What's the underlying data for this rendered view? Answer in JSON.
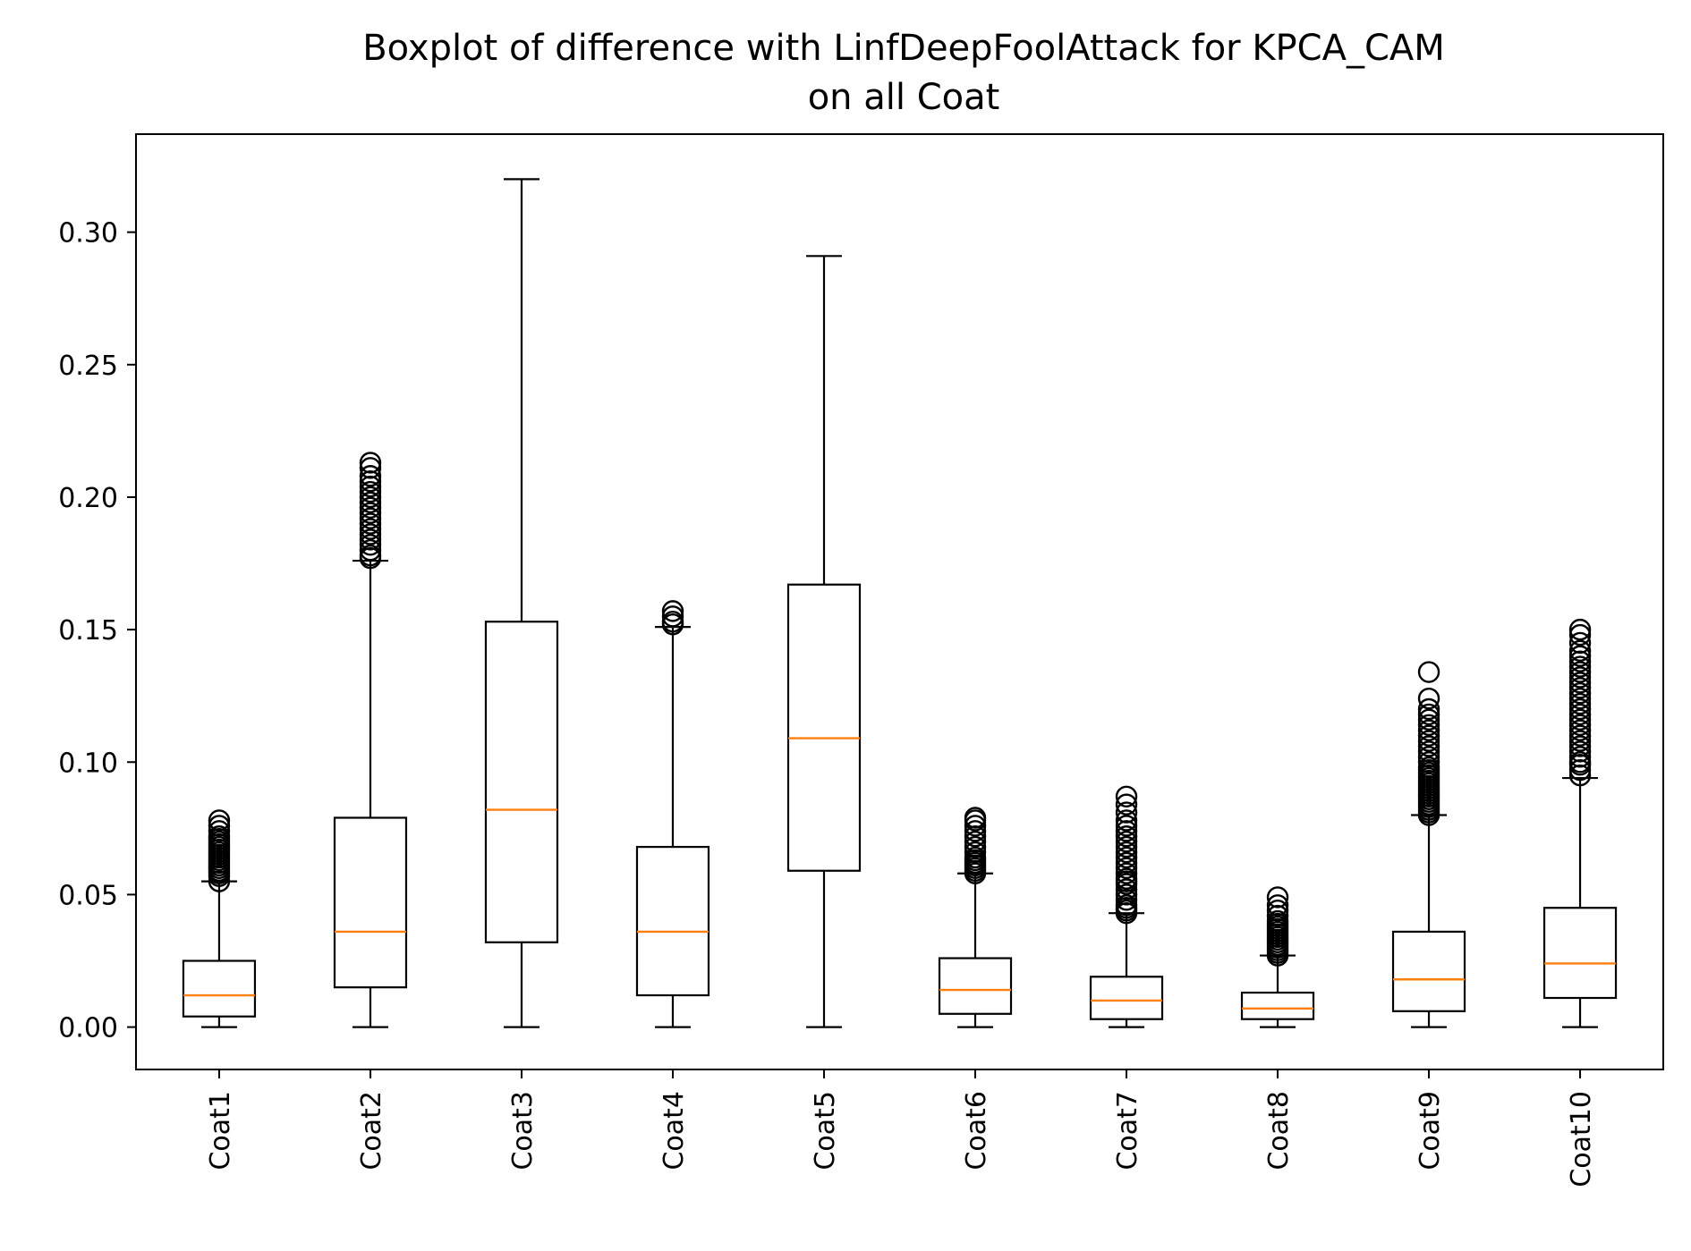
{
  "chart_data": {
    "type": "boxplot",
    "title_line1": "Boxplot of difference with LinfDeepFoolAttack for KPCA_CAM",
    "title_line2": "on all Coat",
    "xlabel": "",
    "ylabel": "",
    "ylim": [
      -0.016,
      0.337
    ],
    "yticks": [
      "0.00",
      "0.05",
      "0.10",
      "0.15",
      "0.20",
      "0.25",
      "0.30"
    ],
    "median_color": "#ff7f0e",
    "box_color": "#000000",
    "grid": false,
    "categories": [
      "Coat1",
      "Coat2",
      "Coat3",
      "Coat4",
      "Coat5",
      "Coat6",
      "Coat7",
      "Coat8",
      "Coat9",
      "Coat10"
    ],
    "boxes": [
      {
        "name": "Coat1",
        "whisker_low": 0.0,
        "q1": 0.004,
        "median": 0.012,
        "q3": 0.025,
        "whisker_high": 0.055,
        "fliers": [
          0.055,
          0.057,
          0.058,
          0.059,
          0.06,
          0.061,
          0.062,
          0.063,
          0.064,
          0.065,
          0.066,
          0.067,
          0.068,
          0.069,
          0.07,
          0.071,
          0.072,
          0.074,
          0.076,
          0.078
        ]
      },
      {
        "name": "Coat2",
        "whisker_low": 0.0,
        "q1": 0.015,
        "median": 0.036,
        "q3": 0.079,
        "whisker_high": 0.176,
        "fliers": [
          0.177,
          0.178,
          0.18,
          0.182,
          0.184,
          0.186,
          0.188,
          0.19,
          0.192,
          0.194,
          0.196,
          0.198,
          0.2,
          0.202,
          0.204,
          0.206,
          0.208,
          0.211,
          0.213
        ]
      },
      {
        "name": "Coat3",
        "whisker_low": 0.0,
        "q1": 0.032,
        "median": 0.082,
        "q3": 0.153,
        "whisker_high": 0.32,
        "fliers": []
      },
      {
        "name": "Coat4",
        "whisker_low": 0.0,
        "q1": 0.012,
        "median": 0.036,
        "q3": 0.068,
        "whisker_high": 0.151,
        "fliers": [
          0.152,
          0.153,
          0.155,
          0.157
        ]
      },
      {
        "name": "Coat5",
        "whisker_low": 0.0,
        "q1": 0.059,
        "median": 0.109,
        "q3": 0.167,
        "whisker_high": 0.291,
        "fliers": []
      },
      {
        "name": "Coat6",
        "whisker_low": 0.0,
        "q1": 0.005,
        "median": 0.014,
        "q3": 0.026,
        "whisker_high": 0.058,
        "fliers": [
          0.058,
          0.059,
          0.06,
          0.061,
          0.062,
          0.063,
          0.064,
          0.066,
          0.068,
          0.07,
          0.072,
          0.074,
          0.076,
          0.078,
          0.079
        ]
      },
      {
        "name": "Coat7",
        "whisker_low": 0.0,
        "q1": 0.003,
        "median": 0.01,
        "q3": 0.019,
        "whisker_high": 0.043,
        "fliers": [
          0.043,
          0.044,
          0.045,
          0.046,
          0.048,
          0.05,
          0.052,
          0.054,
          0.055,
          0.056,
          0.058,
          0.06,
          0.062,
          0.064,
          0.066,
          0.068,
          0.07,
          0.072,
          0.074,
          0.076,
          0.078,
          0.081,
          0.084,
          0.087
        ]
      },
      {
        "name": "Coat8",
        "whisker_low": 0.0,
        "q1": 0.003,
        "median": 0.007,
        "q3": 0.013,
        "whisker_high": 0.027,
        "fliers": [
          0.027,
          0.028,
          0.029,
          0.03,
          0.031,
          0.032,
          0.033,
          0.034,
          0.035,
          0.036,
          0.037,
          0.038,
          0.039,
          0.04,
          0.042,
          0.044,
          0.046,
          0.049
        ]
      },
      {
        "name": "Coat9",
        "whisker_low": 0.0,
        "q1": 0.006,
        "median": 0.018,
        "q3": 0.036,
        "whisker_high": 0.08,
        "fliers": [
          0.08,
          0.081,
          0.082,
          0.083,
          0.084,
          0.085,
          0.086,
          0.087,
          0.088,
          0.089,
          0.09,
          0.091,
          0.092,
          0.093,
          0.094,
          0.095,
          0.096,
          0.097,
          0.098,
          0.1,
          0.102,
          0.104,
          0.106,
          0.108,
          0.11,
          0.112,
          0.114,
          0.116,
          0.118,
          0.12,
          0.124,
          0.134
        ]
      },
      {
        "name": "Coat10",
        "whisker_low": 0.0,
        "q1": 0.011,
        "median": 0.024,
        "q3": 0.045,
        "whisker_high": 0.094,
        "fliers": [
          0.095,
          0.097,
          0.099,
          0.1,
          0.102,
          0.104,
          0.106,
          0.108,
          0.11,
          0.112,
          0.114,
          0.116,
          0.118,
          0.12,
          0.122,
          0.124,
          0.126,
          0.128,
          0.13,
          0.132,
          0.134,
          0.136,
          0.138,
          0.14,
          0.142,
          0.145,
          0.148,
          0.15
        ]
      }
    ]
  }
}
